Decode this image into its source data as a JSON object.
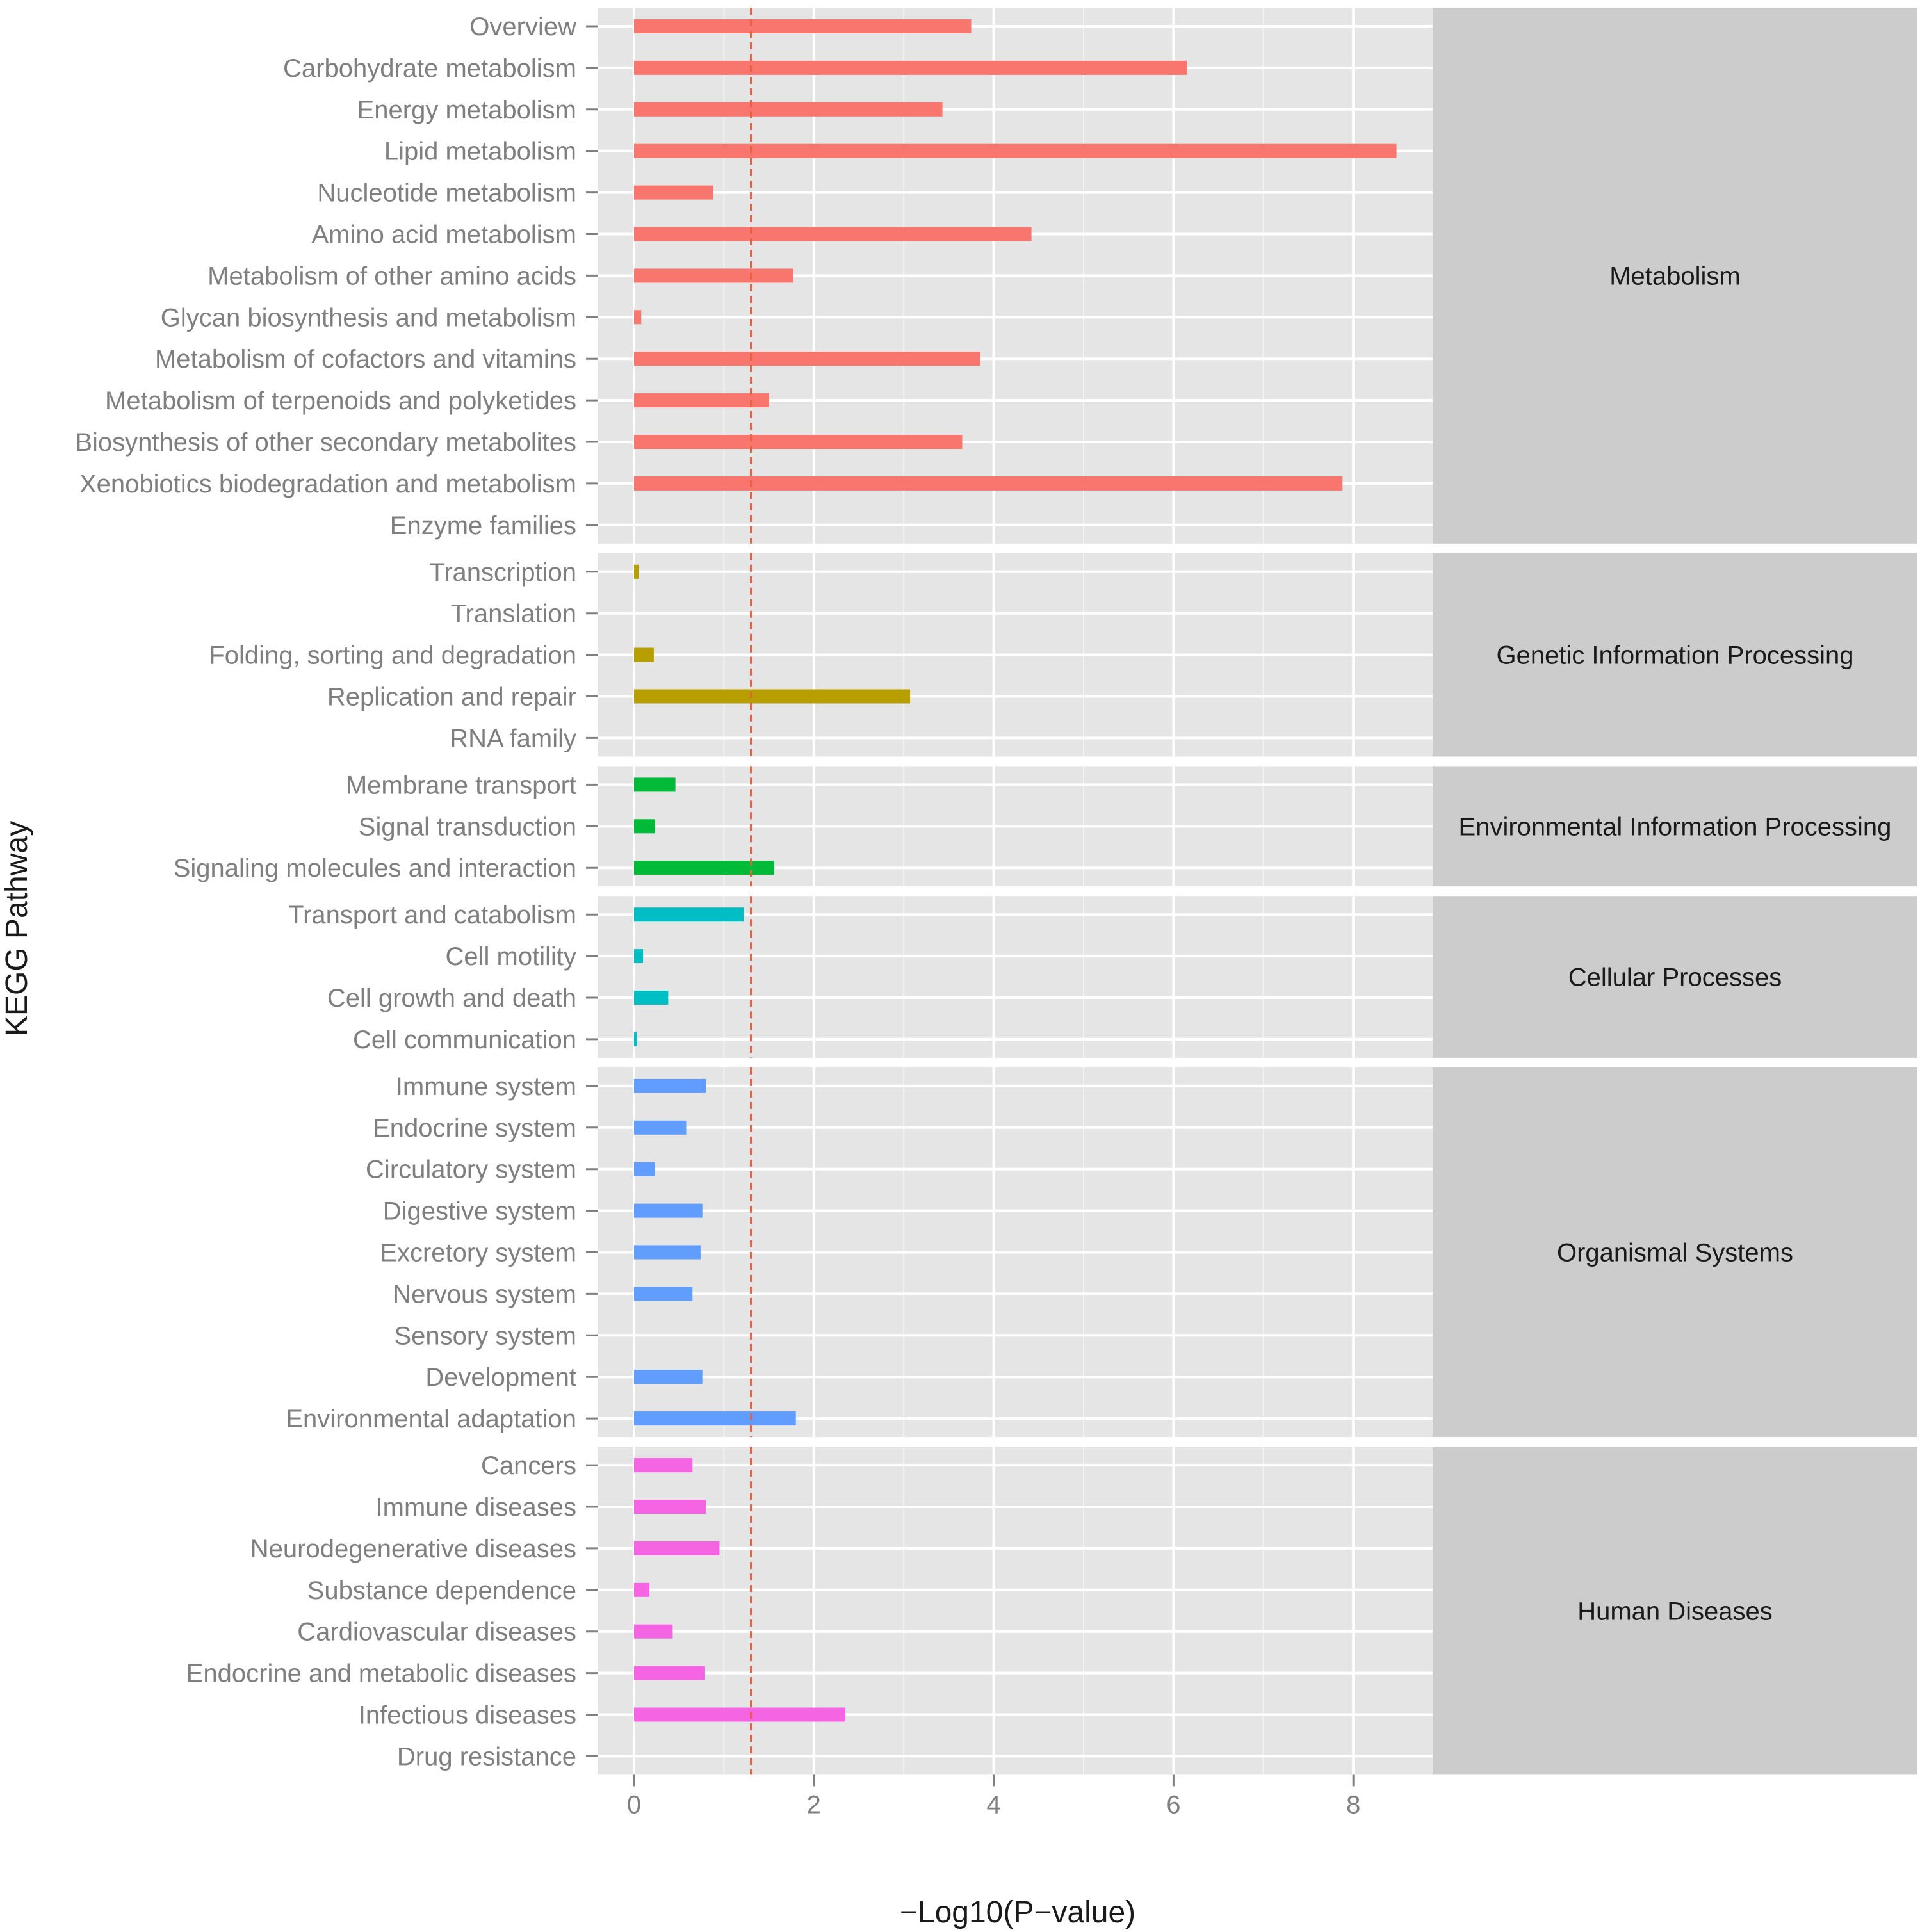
{
  "chart_data": {
    "type": "bar",
    "orientation": "horizontal",
    "xlabel": "−Log10(P−value)",
    "ylabel": "KEGG Pathway",
    "xlim": [
      -0.42,
      8.9
    ],
    "xticks": [
      0,
      2,
      4,
      6,
      8
    ],
    "grid": true,
    "reference_line": {
      "x": 1.3,
      "color": "#e8603c",
      "style": "dashed"
    },
    "groups": [
      {
        "name": "Metabolism",
        "color": "#f8766d",
        "categories": [
          "Overview",
          "Carbohydrate metabolism",
          "Energy metabolism",
          "Lipid metabolism",
          "Nucleotide metabolism",
          "Amino acid metabolism",
          "Metabolism of other amino acids",
          "Glycan biosynthesis and metabolism",
          "Metabolism of cofactors and vitamins",
          "Metabolism of terpenoids and polyketides",
          "Biosynthesis of other secondary metabolites",
          "Xenobiotics biodegradation and metabolism",
          "Enzyme families"
        ],
        "values": [
          3.75,
          6.15,
          3.43,
          8.48,
          0.88,
          4.42,
          1.77,
          0.08,
          3.85,
          1.5,
          3.65,
          7.88,
          0
        ]
      },
      {
        "name": "Genetic Information Processing",
        "color": "#b79f00",
        "categories": [
          "Transcription",
          "Translation",
          "Folding, sorting and degradation",
          "Replication and repair",
          "RNA family"
        ],
        "values": [
          0.05,
          0,
          0.22,
          3.07,
          0
        ]
      },
      {
        "name": "Environmental Information Processing",
        "color": "#00ba38",
        "categories": [
          "Membrane transport",
          "Signal transduction",
          "Signaling molecules and interaction"
        ],
        "values": [
          0.46,
          0.23,
          1.56
        ]
      },
      {
        "name": "Cellular Processes",
        "color": "#00bfc4",
        "categories": [
          "Transport and catabolism",
          "Cell motility",
          "Cell growth and death",
          "Cell communication"
        ],
        "values": [
          1.22,
          0.1,
          0.38,
          0.03
        ]
      },
      {
        "name": "Organismal Systems",
        "color": "#619cff",
        "categories": [
          "Immune system",
          "Endocrine system",
          "Circulatory system",
          "Digestive system",
          "Excretory system",
          "Nervous system",
          "Sensory system",
          "Development",
          "Environmental adaptation"
        ],
        "values": [
          0.8,
          0.58,
          0.23,
          0.76,
          0.74,
          0.65,
          0,
          0.76,
          1.8
        ]
      },
      {
        "name": "Human Diseases",
        "color": "#f564e3",
        "categories": [
          "Cancers",
          "Immune diseases",
          "Neurodegenerative diseases",
          "Substance dependence",
          "Cardiovascular diseases",
          "Endocrine and metabolic diseases",
          "Infectious diseases",
          "Drug resistance"
        ],
        "values": [
          0.65,
          0.8,
          0.95,
          0.17,
          0.43,
          0.79,
          2.35,
          0
        ]
      }
    ]
  }
}
